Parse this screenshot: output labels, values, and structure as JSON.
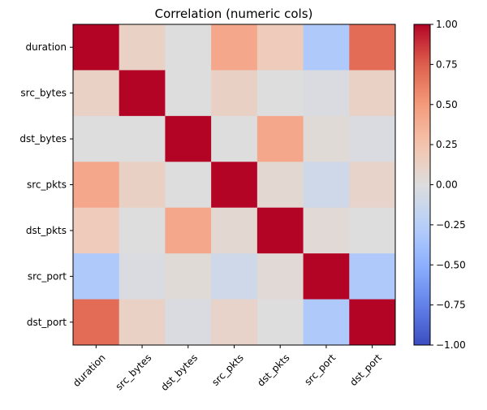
{
  "chart_data": {
    "type": "heatmap",
    "title": "Correlation (numeric cols)",
    "rows": [
      "duration",
      "src_bytes",
      "dst_bytes",
      "src_pkts",
      "dst_pkts",
      "src_port",
      "dst_port"
    ],
    "cols": [
      "duration",
      "src_bytes",
      "dst_bytes",
      "src_pkts",
      "dst_pkts",
      "src_port",
      "dst_port"
    ],
    "values": [
      [
        1.0,
        0.12,
        0.0,
        0.42,
        0.18,
        -0.3,
        0.7
      ],
      [
        0.12,
        1.0,
        0.0,
        0.13,
        0.0,
        -0.03,
        0.12
      ],
      [
        0.0,
        0.0,
        1.0,
        0.0,
        0.42,
        0.03,
        -0.03
      ],
      [
        0.42,
        0.13,
        0.0,
        1.0,
        0.06,
        -0.1,
        0.1
      ],
      [
        0.18,
        0.0,
        0.42,
        0.06,
        1.0,
        0.04,
        0.0
      ],
      [
        -0.3,
        -0.03,
        0.03,
        -0.1,
        0.04,
        1.0,
        -0.3
      ],
      [
        0.7,
        0.12,
        -0.03,
        0.1,
        0.0,
        -0.3,
        1.0
      ]
    ],
    "colormap": "coolwarm",
    "vmin": -1.0,
    "vmax": 1.0,
    "colorbar_ticks": [
      "−1.00",
      "−0.75",
      "−0.50",
      "−0.25",
      "0.00",
      "0.25",
      "0.50",
      "0.75",
      "1.00"
    ],
    "colorbar_tick_values": [
      -1.0,
      -0.75,
      -0.5,
      -0.25,
      0.0,
      0.25,
      0.5,
      0.75,
      1.0
    ],
    "x_tick_rotation_deg": 45,
    "colors": {
      "low": "#3b4cc0",
      "mid": "#dddddd",
      "high": "#b40426"
    }
  }
}
